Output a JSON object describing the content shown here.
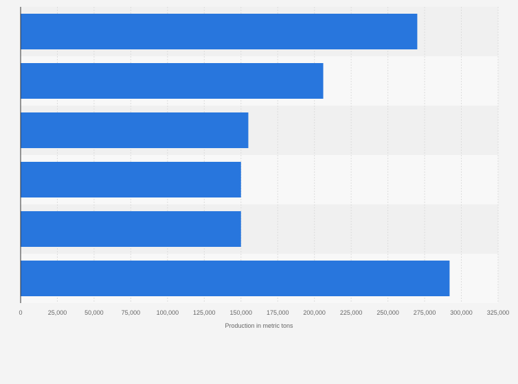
{
  "chart_data": {
    "type": "bar",
    "orientation": "horizontal",
    "title": "",
    "categories": [
      "",
      "",
      "",
      "",
      "",
      ""
    ],
    "values": [
      270000,
      206000,
      155000,
      150000,
      150000,
      292000
    ],
    "xlabel": "Production in metric tons",
    "ylabel": "",
    "xlim": [
      0,
      325000
    ],
    "xticks": [
      0,
      25000,
      50000,
      75000,
      100000,
      125000,
      150000,
      175000,
      200000,
      225000,
      250000,
      275000,
      300000,
      325000
    ],
    "xtick_labels": [
      "0",
      "25,000",
      "50,000",
      "75,000",
      "100,000",
      "125,000",
      "150,000",
      "175,000",
      "200,000",
      "225,000",
      "250,000",
      "275,000",
      "300,000",
      "325,000"
    ],
    "grid": true,
    "colors": {
      "bar": "#2876dd",
      "band_dark": "#f0f0f0",
      "band_light": "#f8f8f8",
      "grid": "#dcdcdc",
      "axis": "#333333",
      "tick_text": "#666666",
      "background": "#f4f4f4"
    }
  }
}
